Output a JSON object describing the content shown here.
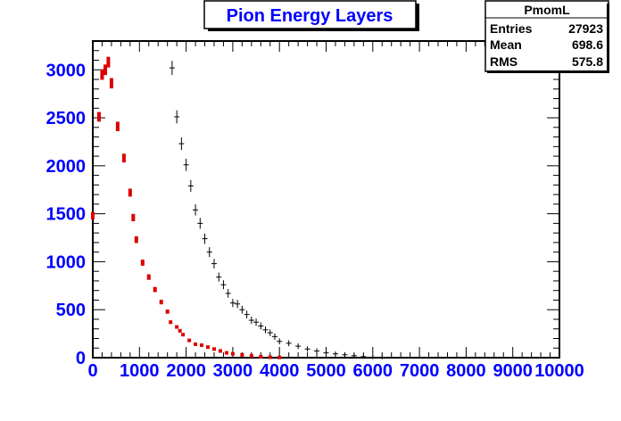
{
  "chart_data": {
    "type": "scatter",
    "title": "Pion Energy Layers",
    "xlim": [
      0,
      10000
    ],
    "ylim": [
      0,
      3300
    ],
    "x_ticks": [
      0,
      1000,
      2000,
      3000,
      4000,
      5000,
      6000,
      7000,
      8000,
      9000,
      10000
    ],
    "y_ticks": [
      0,
      500,
      1000,
      1500,
      2000,
      2500,
      3000
    ],
    "grid": false,
    "stats_box": {
      "name": "PmomL",
      "rows": [
        {
          "label": "Entries",
          "value": "27923"
        },
        {
          "label": "Mean",
          "value": "698.6"
        },
        {
          "label": "RMS",
          "value": "575.8"
        }
      ]
    },
    "series": [
      {
        "color": "#dd0000",
        "style": "error-bars",
        "x": [
          0,
          133,
          200,
          267,
          333,
          400,
          533,
          667,
          800,
          867,
          933,
          1067,
          1200,
          1333,
          1467,
          1600,
          1667,
          1800,
          1867,
          1933,
          2067,
          2200,
          2333,
          2467,
          2600,
          2733,
          2867,
          3000,
          3200,
          3400,
          3600,
          3800,
          4000
        ],
        "y": [
          1480,
          2510,
          2950,
          3000,
          3080,
          2860,
          2410,
          2080,
          1720,
          1460,
          1230,
          990,
          840,
          710,
          580,
          480,
          370,
          320,
          280,
          240,
          180,
          140,
          130,
          110,
          90,
          70,
          50,
          40,
          30,
          20,
          10,
          5,
          3
        ]
      },
      {
        "color": "#000000",
        "style": "error-bars",
        "x": [
          1700,
          1800,
          1900,
          2000,
          2100,
          2200,
          2300,
          2400,
          2500,
          2600,
          2700,
          2800,
          2900,
          3000,
          3100,
          3200,
          3300,
          3400,
          3500,
          3600,
          3700,
          3800,
          3900,
          4000,
          4200,
          4400,
          4600,
          4800,
          5000,
          5200,
          5400,
          5600,
          5800,
          6000,
          6200
        ],
        "y": [
          3020,
          2510,
          2230,
          2010,
          1790,
          1540,
          1400,
          1240,
          1100,
          980,
          840,
          760,
          670,
          570,
          560,
          500,
          450,
          390,
          370,
          330,
          290,
          260,
          220,
          170,
          150,
          120,
          90,
          70,
          50,
          40,
          30,
          20,
          10,
          5,
          3
        ]
      }
    ]
  }
}
